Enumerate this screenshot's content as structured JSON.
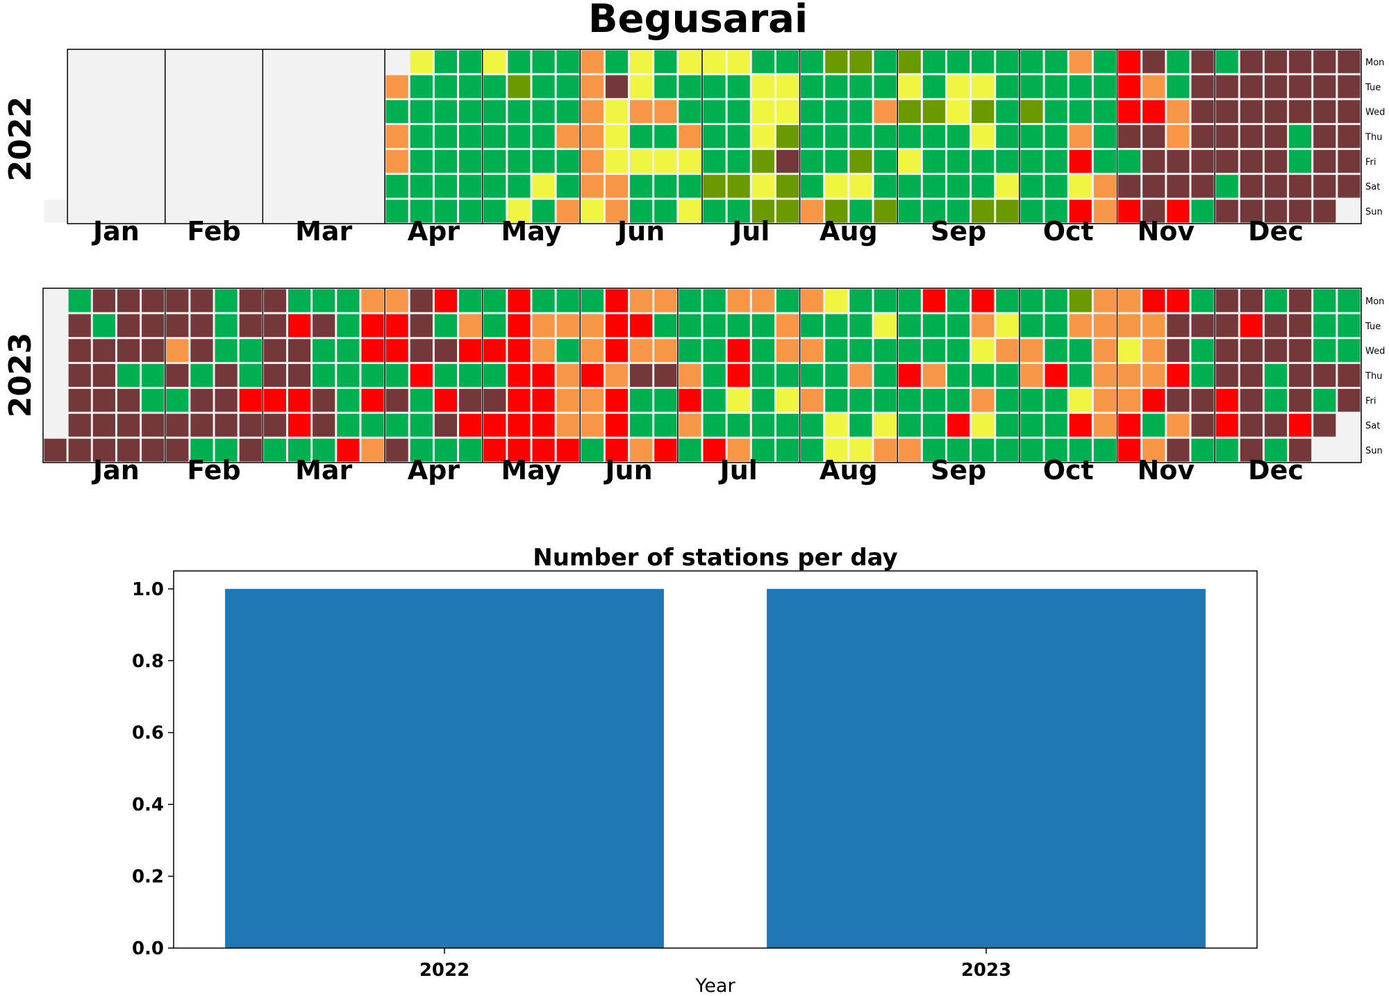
{
  "title": "Begusarai",
  "day_labels": [
    "Mon",
    "Tue",
    "Wed",
    "Thu",
    "Fri",
    "Sat",
    "Sun"
  ],
  "month_labels": [
    "Jan",
    "Feb",
    "Mar",
    "Apr",
    "May",
    "Jun",
    "Jul",
    "Aug",
    "Sep",
    "Oct",
    "Nov",
    "Dec"
  ],
  "colors": {
    "no_data": "#f2f2f2",
    "good": "#00b050",
    "satisfactory": "#6b9a00",
    "moderate": "#f0f542",
    "poor": "#f79646",
    "very_poor": "#ff0000",
    "severe": "#74373a",
    "bar": "#1f77b4"
  },
  "chart_data": [
    {
      "type": "heatmap",
      "year": "2022",
      "weeks": 54,
      "start_week_index": 1,
      "months_start_week": [
        1,
        5,
        9,
        14,
        18,
        22,
        27,
        31,
        35,
        40,
        44,
        48
      ],
      "week_strings": [
        "......Z",
        "ZZZZZZZ",
        "ZZZZZZZ",
        "ZZZZZZZ",
        "ZZZZZZZ",
        "ZZZZZZZ",
        "ZZZZZZZ",
        "ZZZZZZZ",
        "ZZZZZZZ",
        "ZZZZZZZ",
        "ZZZZZZZ",
        "ZZZZZZZ",
        "ZZZZZZZ",
        "ZZZZZZZ",
        "ZPGPPGG",
        "MGGGGGG",
        "GGGGGGG",
        "GGGGGGG",
        "MGGGGGG",
        "GSGGGGM",
        "GGGGGMG",
        "GGGPGGP",
        "PPPPPPM",
        "GVMMMPP",
        "MMPGMGG",
        "GGPGMGG",
        "MGGPMGM",
        "MGGGGSG",
        "MGGGGSG",
        "GMMMSMS",
        "GMMSVSS",
        "GGGGGGP",
        "SGGGGMS",
        "SGGGSMG",
        "GGPGGGS",
        "SMSGMGG",
        "GGSGGGG",
        "GMMGGGG",
        "GMSMGGS",
        "GGGGGMS",
        "GGSGGGG",
        "GGGGGGG",
        "PGGPRMR",
        "GGGGGPP",
        "RRRVGVR",
        "VPRVVVV",
        "GGPPVVR",
        "VVVVVVG",
        "GVVVVGV",
        "VVVVVVV",
        "VVVVVVV",
        "VVVGGVV",
        "VVVVVVV",
        "VVVVVV."
      ]
    },
    {
      "type": "heatmap",
      "year": "2023",
      "weeks": 54,
      "start_week_index": 0,
      "months_start_week": [
        1,
        5,
        9,
        14,
        18,
        22,
        26,
        31,
        35,
        40,
        44,
        48
      ],
      "week_strings": [
        "......V",
        "GVVVVVV",
        "VGVVVVV",
        "VVVGVVV",
        "VVVGGVV",
        "VVPVGVV",
        "VVVGVVG",
        "GGGVVVG",
        "VVGGRVV",
        "VVVVRVG",
        "GRVVRRG",
        "GVGGVVG",
        "GGGGGGR",
        "PRRGRGP",
        "PRRGVGV",
        "VVVRGGG",
        "RGVGRVG",
        "GPRGVRG",
        "GGRGVRR",
        "RRRRRRR",
        "GPPRRRR",
        "GPGPPPR",
        "GPPRPPG",
        "RRRPRRR",
        "PRPVGGP",
        "PGPVGGR",
        "GGGPRPG",
        "GGGGGGR",
        "PGRRMGP",
        "PGGGGGG",
        "GPPGMGG",
        "PGPGPGG",
        "MGGGGMM",
        "GGGPGGM",
        "GMGGGMP",
        "GGGRGGP",
        "RGGPGGG",
        "GGGGGRG",
        "RPMGPMG",
        "GMPGGGG",
        "GGPPGGG",
        "GGGRGGG",
        "SPGGMRG",
        "PPPPPPG",
        "PPMPPRR",
        "RPPPRGP",
        "RVVRVPV",
        "GVGGVVG",
        "VVVVRRG",
        "VRVVVVV",
        "GVVGGVG",
        "VVVVVRV",
        "GGGVGV.",
        "GGGVV.."
      ]
    },
    {
      "type": "bar",
      "title": "Number of stations per day",
      "categories": [
        "2022",
        "2023"
      ],
      "values": [
        1,
        1
      ],
      "xlabel": "Year",
      "ylabel": "",
      "ylim": [
        0,
        1.05
      ],
      "yticks": [
        "0.0",
        "0.2",
        "0.4",
        "0.6",
        "0.8",
        "1.0"
      ]
    }
  ]
}
